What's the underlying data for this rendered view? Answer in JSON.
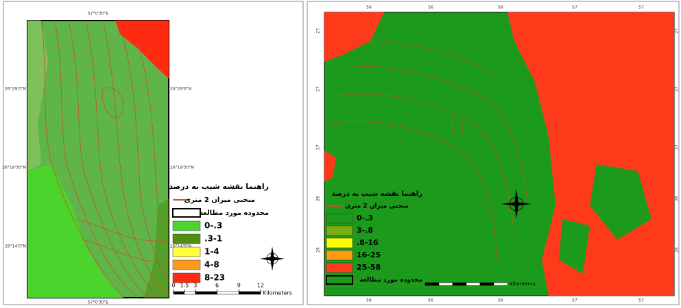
{
  "left_map": {
    "top_coord": "57°0'30\"E",
    "bottom_coord": "57°0'30\"E",
    "left_coords": [
      "26°29'0\"N",
      "26°19'30\"N",
      "26°14'0\"N"
    ],
    "right_coords": [
      "26°29'0\"N",
      "26°19'30\"N",
      "26°14'0\"N"
    ],
    "legend": {
      "title": "راهنما نقشه شیب به درصد",
      "contour": "منحنی میزان 2 متری",
      "boundary": "محدوده مورد مطالعه",
      "classes": [
        {
          "label": "0-.3",
          "color": "#4cd42c"
        },
        {
          "label": ".3-1",
          "color": "#4f8f12"
        },
        {
          "label": "1-4",
          "color": "#ffff3c"
        },
        {
          "label": "4-8",
          "color": "#ff9a1e"
        },
        {
          "label": "8-23",
          "color": "#ff2a12"
        }
      ]
    },
    "scale": {
      "ticks": [
        0,
        1.5,
        3,
        6,
        9,
        12
      ],
      "unit": "Kilometers"
    }
  },
  "right_map": {
    "top_coords": [
      "56",
      "56",
      "56",
      "57",
      "57"
    ],
    "bottom_coords": [
      "56",
      "56",
      "56",
      "57",
      "57"
    ],
    "left_coords": [
      "27",
      "27",
      "27",
      "26",
      "26"
    ],
    "right_coords": [
      "27",
      "27",
      "27",
      "26",
      "26"
    ],
    "legend": {
      "title": "راهنما نقشه شیب به درصد",
      "contour": "منحنی میزان 2 متری",
      "boundary": "محدوده مورد مطالعه",
      "classes": [
        {
          "label": "0-.3",
          "color": "#1c9a1c"
        },
        {
          "label": "3-.8",
          "color": "#7aae12"
        },
        {
          "label": ".8-16",
          "color": "#ffff00"
        },
        {
          "label": "16-25",
          "color": "#ff9c12"
        },
        {
          "label": "25-58",
          "color": "#ff3a1a"
        }
      ]
    },
    "scale": {
      "unit": "Kilometers"
    }
  }
}
